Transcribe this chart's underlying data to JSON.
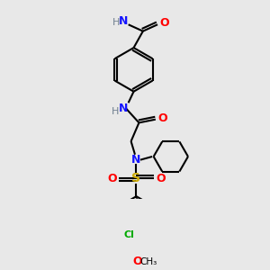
{
  "bg_color": "#e8e8e8",
  "atom_colors": {
    "C": "#000000",
    "N": "#1414ff",
    "O": "#ff0000",
    "S": "#ccaa00",
    "Cl": "#00aa00",
    "H": "#708090"
  },
  "figsize": [
    3.0,
    3.0
  ],
  "dpi": 100
}
